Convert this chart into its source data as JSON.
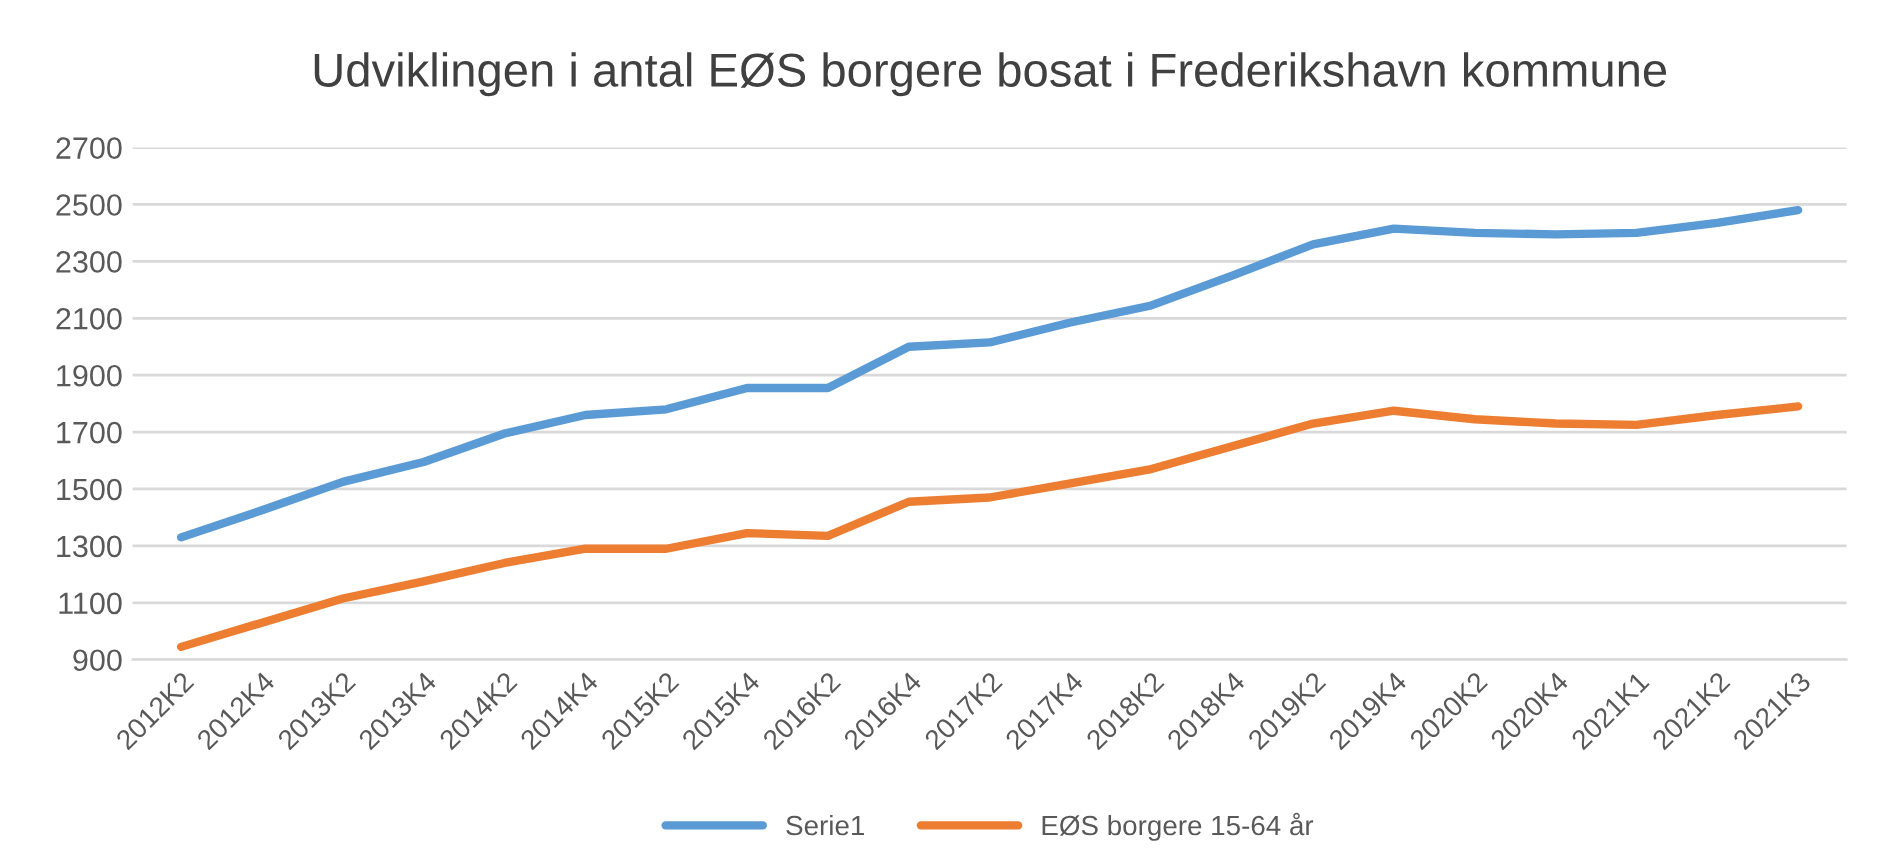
{
  "chart_data": {
    "type": "line",
    "title": "Udviklingen i antal EØS borgere bosat i Frederikshavn kommune",
    "categories": [
      "2012K2",
      "2012K4",
      "2013K2",
      "2013K4",
      "2014K2",
      "2014K4",
      "2015K2",
      "2015K4",
      "2016K2",
      "2016K4",
      "2017K2",
      "2017K4",
      "2018K2",
      "2018K4",
      "2019K2",
      "2019K4",
      "2020K2",
      "2020K4",
      "2021K1",
      "2021K2",
      "2021K3"
    ],
    "series": [
      {
        "name": "Serie1",
        "color": "#5b9bd5",
        "values": [
          1330,
          1425,
          1525,
          1595,
          1695,
          1760,
          1780,
          1855,
          1855,
          2000,
          2015,
          2085,
          2145,
          2250,
          2360,
          2415,
          2400,
          2395,
          2400,
          2435,
          2480
        ]
      },
      {
        "name": "EØS borgere 15-64 år",
        "color": "#ed7d31",
        "values": [
          945,
          1030,
          1115,
          1175,
          1240,
          1290,
          1290,
          1345,
          1335,
          1455,
          1470,
          1520,
          1570,
          1650,
          1730,
          1775,
          1745,
          1730,
          1725,
          1760,
          1790
        ]
      }
    ],
    "ylim": [
      900,
      2700
    ],
    "yticks": [
      900,
      1100,
      1300,
      1500,
      1700,
      1900,
      2100,
      2300,
      2500,
      2700
    ],
    "grid": "y",
    "legend": "bottom",
    "line_style": "solid",
    "marker": "none"
  }
}
